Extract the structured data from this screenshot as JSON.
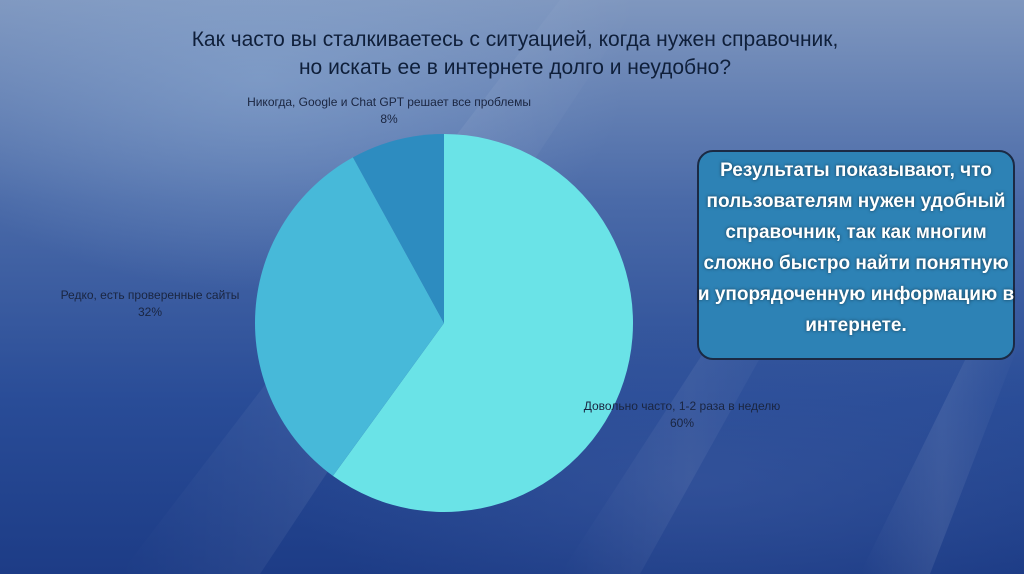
{
  "chart_data": {
    "type": "pie",
    "title": "Как часто вы сталкиваетесь с ситуацией, когда нужен справочник, но искать ее в интернете долго и неудобно?",
    "slices": [
      {
        "label": "Довольно часто, 1-2 раза в неделю",
        "value": 60,
        "value_label": "60%",
        "color": "#6ae3e7"
      },
      {
        "label": "Редко, есть проверенные сайты",
        "value": 32,
        "value_label": "32%",
        "color": "#47b9d9"
      },
      {
        "label": "Никогда, Google и Chat GPT решает все проблемы",
        "value": 8,
        "value_label": "8%",
        "color": "#2d8cc0"
      }
    ],
    "start_angle": "12 o'clock",
    "direction": "clockwise"
  },
  "callout": {
    "text": "Результаты показывают, что пользователям нужен удобный справочник, так как многим сложно быстро найти понятную и упорядоченную информацию в интернете.",
    "box_color": "#2d82b5"
  }
}
